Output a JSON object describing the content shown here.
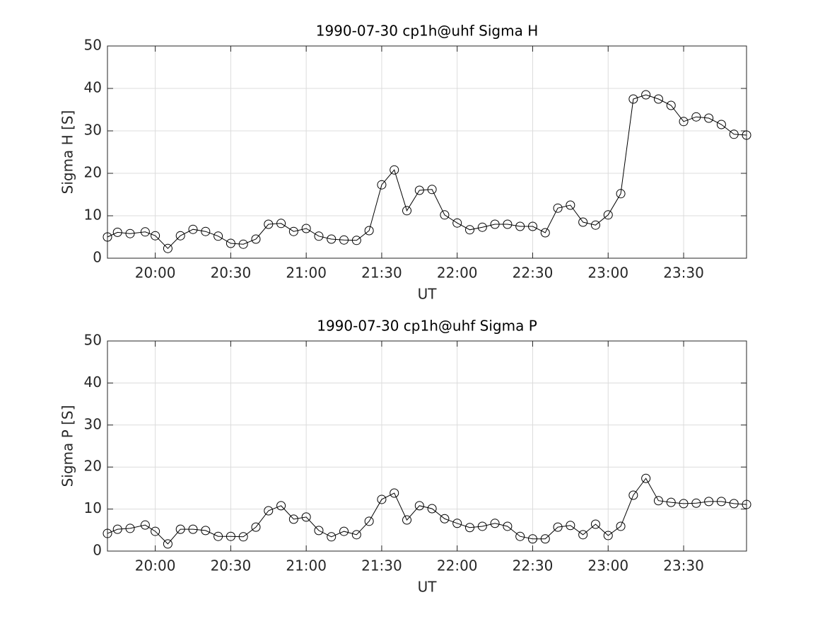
{
  "chart_data": [
    {
      "type": "line",
      "title": "1990-07-30  cp1h@uhf Sigma H",
      "xlabel": "UT",
      "ylabel": "Sigma H [S]",
      "x": [
        "19:41",
        "19:45",
        "19:50",
        "19:56",
        "20:00",
        "20:05",
        "20:10",
        "20:15",
        "20:20",
        "20:25",
        "20:30",
        "20:35",
        "20:40",
        "20:45",
        "20:50",
        "20:55",
        "21:00",
        "21:05",
        "21:10",
        "21:15",
        "21:20",
        "21:25",
        "21:30",
        "21:35",
        "21:40",
        "21:45",
        "21:50",
        "21:55",
        "22:00",
        "22:05",
        "22:10",
        "22:15",
        "22:20",
        "22:25",
        "22:30",
        "22:35",
        "22:40",
        "22:45",
        "22:50",
        "22:55",
        "23:00",
        "23:05",
        "23:10",
        "23:15",
        "23:20",
        "23:25",
        "23:30",
        "23:35",
        "23:40",
        "23:45",
        "23:50",
        "23:55"
      ],
      "series": [
        {
          "color": "#000000",
          "values": [
            5.0,
            6.1,
            5.8,
            6.2,
            5.3,
            2.3,
            5.3,
            6.8,
            6.3,
            5.2,
            3.5,
            3.3,
            4.5,
            8.0,
            8.2,
            6.3,
            7.0,
            5.2,
            4.5,
            4.3,
            4.2,
            6.5,
            17.3,
            20.8,
            11.2,
            16.0,
            16.2,
            10.2,
            8.3,
            6.7,
            7.3,
            8.0,
            8.0,
            7.5,
            7.5,
            6.0,
            11.8,
            12.5,
            8.5,
            7.8,
            10.2,
            15.2,
            37.5,
            38.5,
            37.5,
            36.0,
            32.2,
            33.3,
            33.0,
            31.5,
            29.2,
            29.0
          ]
        }
      ],
      "xlim": [
        "19:41",
        "23:55"
      ],
      "xticks": [
        "20:00",
        "20:30",
        "21:00",
        "21:30",
        "22:00",
        "22:30",
        "23:00",
        "23:30"
      ],
      "ylim": [
        0,
        50
      ],
      "yticks": [
        0,
        10,
        20,
        30,
        40,
        50
      ],
      "grid": true,
      "marker": "circle"
    },
    {
      "type": "line",
      "title": "1990-07-30  cp1h@uhf Sigma P",
      "xlabel": "UT",
      "ylabel": "Sigma P [S]",
      "x": [
        "19:41",
        "19:45",
        "19:50",
        "19:56",
        "20:00",
        "20:05",
        "20:10",
        "20:15",
        "20:20",
        "20:25",
        "20:30",
        "20:35",
        "20:40",
        "20:45",
        "20:50",
        "20:55",
        "21:00",
        "21:05",
        "21:10",
        "21:15",
        "21:20",
        "21:25",
        "21:30",
        "21:35",
        "21:40",
        "21:45",
        "21:50",
        "21:55",
        "22:00",
        "22:05",
        "22:10",
        "22:15",
        "22:20",
        "22:25",
        "22:30",
        "22:35",
        "22:40",
        "22:45",
        "22:50",
        "22:55",
        "23:00",
        "23:05",
        "23:10",
        "23:15",
        "23:20",
        "23:25",
        "23:30",
        "23:35",
        "23:40",
        "23:45",
        "23:50",
        "23:55"
      ],
      "series": [
        {
          "color": "#000000",
          "values": [
            4.2,
            5.2,
            5.4,
            6.2,
            4.7,
            1.7,
            5.2,
            5.2,
            4.9,
            3.5,
            3.5,
            3.4,
            5.7,
            9.6,
            10.8,
            7.6,
            8.1,
            4.9,
            3.4,
            4.7,
            3.9,
            7.1,
            12.3,
            13.8,
            7.4,
            10.8,
            10.1,
            7.7,
            6.6,
            5.6,
            5.9,
            6.6,
            5.9,
            3.5,
            2.9,
            2.9,
            5.7,
            6.1,
            3.9,
            6.4,
            3.7,
            5.9,
            13.3,
            17.3,
            12.0,
            11.6,
            11.3,
            11.4,
            11.8,
            11.8,
            11.3,
            11.1
          ]
        }
      ],
      "xlim": [
        "19:41",
        "23:55"
      ],
      "xticks": [
        "20:00",
        "20:30",
        "21:00",
        "21:30",
        "22:00",
        "22:30",
        "23:00",
        "23:30"
      ],
      "ylim": [
        0,
        50
      ],
      "yticks": [
        0,
        10,
        20,
        30,
        40,
        50
      ],
      "grid": true,
      "marker": "circle"
    }
  ]
}
